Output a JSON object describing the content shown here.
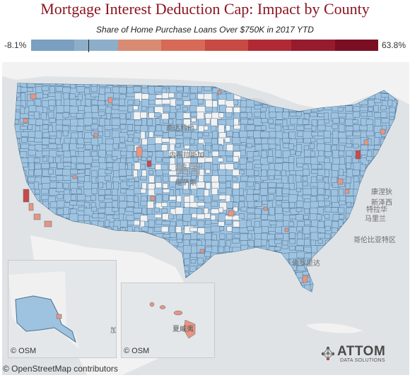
{
  "title": "Mortgage Interest Deduction Cap: Impact by County",
  "subtitle": "Share of Home Purchase Loans Over $750K in 2017 YTD",
  "legend": {
    "min_label": "-8.1%",
    "max_label": "63.8%",
    "colors": [
      "#7a9fc0",
      "#8daec9",
      "#d98a73",
      "#d66a57",
      "#c84a44",
      "#b02a35",
      "#961b2d",
      "#7a0f24"
    ]
  },
  "map": {
    "place_labels": [
      "美国",
      "南达科他",
      "内布拉斯加",
      "堪萨斯",
      "康涅狄",
      "新泽西",
      "特拉华",
      "马里兰",
      "哥伦比亚特区",
      "佛罗里达",
      "夏威夷",
      "加"
    ],
    "colors": {
      "water": "#dfe3e6",
      "land_other": "#f2f2f2",
      "county_low": "#9ec3e0",
      "county_mid": "#e8957f",
      "county_high": "#c94a44",
      "border": "#4d6f8e"
    }
  },
  "insets": {
    "alaska_osm": "© OSM",
    "hawaii_osm": "© OSM"
  },
  "attribution": "© OpenStreetMap contributors",
  "logo": {
    "name": "ATTOM",
    "tagline": "DATA SOLUTIONS"
  }
}
